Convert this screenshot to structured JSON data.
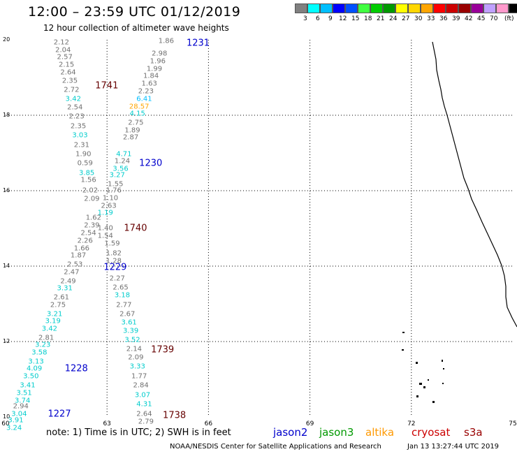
{
  "header": {
    "title": "12:00 – 23:59 UTC 01/12/2019",
    "subtitle": "12 hour collection of altimeter wave heights"
  },
  "legend": {
    "unit": "(ft)",
    "colors": [
      "#808080",
      "#00ffff",
      "#00bfff",
      "#0000ff",
      "#0050ff",
      "#40ff40",
      "#00cc00",
      "#009900",
      "#ffff00",
      "#ffd700",
      "#ffa500",
      "#ff0000",
      "#cc0000",
      "#990000",
      "#990099",
      "#c0a0ff",
      "#ff99cc",
      "#000000"
    ],
    "labels": [
      "3",
      "6",
      "9",
      "12",
      "15",
      "18",
      "21",
      "24",
      "27",
      "30",
      "33",
      "36",
      "39",
      "42",
      "45",
      "70"
    ]
  },
  "axes": {
    "y_ticks": [
      "20",
      "18",
      "16",
      "14",
      "12",
      "10"
    ],
    "x_ticks": [
      "60",
      "63",
      "66",
      "69",
      "72",
      "75"
    ]
  },
  "tracks": [
    {
      "label": "1231",
      "color": "#0000cc",
      "lon": 65.35,
      "lat": 19.9
    },
    {
      "label": "1741",
      "color": "#660000",
      "lon": 62.65,
      "lat": 18.77
    },
    {
      "label": "1230",
      "color": "#0000cc",
      "lon": 63.95,
      "lat": 16.73
    },
    {
      "label": "1740",
      "color": "#660000",
      "lon": 63.5,
      "lat": 15.0
    },
    {
      "label": "1229",
      "color": "#0000cc",
      "lon": 62.9,
      "lat": 13.97
    },
    {
      "label": "1739",
      "color": "#660000",
      "lon": 64.3,
      "lat": 11.77
    },
    {
      "label": "1228",
      "color": "#0000cc",
      "lon": 61.75,
      "lat": 11.28
    },
    {
      "label": "1227",
      "color": "#0000cc",
      "lon": 61.25,
      "lat": 10.07
    },
    {
      "label": "1738",
      "color": "#660000",
      "lon": 64.65,
      "lat": 10.04
    }
  ],
  "observations": [
    {
      "v": "2.12",
      "c": "#707070",
      "lon": 61.65,
      "lat": 19.93
    },
    {
      "v": "2.04",
      "c": "#707070",
      "lon": 61.7,
      "lat": 19.73
    },
    {
      "v": "2.57",
      "c": "#707070",
      "lon": 61.75,
      "lat": 19.53
    },
    {
      "v": "2.15",
      "c": "#707070",
      "lon": 61.8,
      "lat": 19.33
    },
    {
      "v": "2.64",
      "c": "#707070",
      "lon": 61.85,
      "lat": 19.13
    },
    {
      "v": "2.35",
      "c": "#707070",
      "lon": 61.9,
      "lat": 18.9
    },
    {
      "v": "2.72",
      "c": "#707070",
      "lon": 61.95,
      "lat": 18.67
    },
    {
      "v": "3.42",
      "c": "#00cccc",
      "lon": 62.0,
      "lat": 18.43
    },
    {
      "v": "2.54",
      "c": "#707070",
      "lon": 62.05,
      "lat": 18.2
    },
    {
      "v": "2.23",
      "c": "#707070",
      "lon": 62.1,
      "lat": 17.97
    },
    {
      "v": "2.35",
      "c": "#707070",
      "lon": 62.15,
      "lat": 17.7
    },
    {
      "v": "3.03",
      "c": "#00cccc",
      "lon": 62.2,
      "lat": 17.47
    },
    {
      "v": "2.31",
      "c": "#707070",
      "lon": 62.25,
      "lat": 17.2
    },
    {
      "v": "1.90",
      "c": "#707070",
      "lon": 62.3,
      "lat": 16.97
    },
    {
      "v": "0.59",
      "c": "#707070",
      "lon": 62.35,
      "lat": 16.73
    },
    {
      "v": "3.85",
      "c": "#00cccc",
      "lon": 62.4,
      "lat": 16.47
    },
    {
      "v": "1.56",
      "c": "#707070",
      "lon": 62.45,
      "lat": 16.27
    },
    {
      "v": "2.02",
      "c": "#707070",
      "lon": 62.5,
      "lat": 16.0
    },
    {
      "v": "2.09",
      "c": "#707070",
      "lon": 62.55,
      "lat": 15.77
    },
    {
      "v": "1.62",
      "c": "#707070",
      "lon": 62.6,
      "lat": 15.27
    },
    {
      "v": "2.39",
      "c": "#707070",
      "lon": 62.55,
      "lat": 15.07
    },
    {
      "v": "2.54",
      "c": "#707070",
      "lon": 62.45,
      "lat": 14.87
    },
    {
      "v": "2.26",
      "c": "#707070",
      "lon": 62.35,
      "lat": 14.67
    },
    {
      "v": "1.66",
      "c": "#707070",
      "lon": 62.25,
      "lat": 14.47
    },
    {
      "v": "1.87",
      "c": "#707070",
      "lon": 62.15,
      "lat": 14.27
    },
    {
      "v": "2.53",
      "c": "#707070",
      "lon": 62.05,
      "lat": 14.03
    },
    {
      "v": "2.47",
      "c": "#707070",
      "lon": 61.95,
      "lat": 13.83
    },
    {
      "v": "2.49",
      "c": "#707070",
      "lon": 61.85,
      "lat": 13.6
    },
    {
      "v": "3.31",
      "c": "#00cccc",
      "lon": 61.75,
      "lat": 13.4
    },
    {
      "v": "2.61",
      "c": "#707070",
      "lon": 61.65,
      "lat": 13.17
    },
    {
      "v": "2.75",
      "c": "#707070",
      "lon": 61.55,
      "lat": 12.97
    },
    {
      "v": "3.21",
      "c": "#00cccc",
      "lon": 61.45,
      "lat": 12.73
    },
    {
      "v": "3.19",
      "c": "#00cccc",
      "lon": 61.4,
      "lat": 12.53
    },
    {
      "v": "3.42",
      "c": "#00cccc",
      "lon": 61.3,
      "lat": 12.33
    },
    {
      "v": "2.81",
      "c": "#707070",
      "lon": 61.2,
      "lat": 12.1
    },
    {
      "v": "3.23",
      "c": "#00cccc",
      "lon": 61.1,
      "lat": 11.9
    },
    {
      "v": "3.58",
      "c": "#00cccc",
      "lon": 61.0,
      "lat": 11.7
    },
    {
      "v": "3.13",
      "c": "#00cccc",
      "lon": 60.9,
      "lat": 11.47
    },
    {
      "v": "4.09",
      "c": "#00cccc",
      "lon": 60.85,
      "lat": 11.27
    },
    {
      "v": "3.50",
      "c": "#00cccc",
      "lon": 60.75,
      "lat": 11.07
    },
    {
      "v": "3.41",
      "c": "#00cccc",
      "lon": 60.65,
      "lat": 10.83
    },
    {
      "v": "3.51",
      "c": "#00cccc",
      "lon": 60.55,
      "lat": 10.63
    },
    {
      "v": "3.74",
      "c": "#00cccc",
      "lon": 60.5,
      "lat": 10.43
    },
    {
      "v": "2.94",
      "c": "#707070",
      "lon": 60.45,
      "lat": 10.27
    },
    {
      "v": "3.04",
      "c": "#00cccc",
      "lon": 60.4,
      "lat": 10.07
    },
    {
      "v": "3.91",
      "c": "#00cccc",
      "lon": 60.3,
      "lat": 9.9
    },
    {
      "v": "3.24",
      "c": "#00cccc",
      "lon": 60.25,
      "lat": 9.7
    },
    {
      "v": "1.86",
      "c": "#707070",
      "lon": 64.75,
      "lat": 19.97
    },
    {
      "v": "2.98",
      "c": "#707070",
      "lon": 64.55,
      "lat": 19.63
    },
    {
      "v": "1.96",
      "c": "#707070",
      "lon": 64.5,
      "lat": 19.43
    },
    {
      "v": "1.99",
      "c": "#707070",
      "lon": 64.4,
      "lat": 19.23
    },
    {
      "v": "1.84",
      "c": "#707070",
      "lon": 64.3,
      "lat": 19.03
    },
    {
      "v": "1.63",
      "c": "#707070",
      "lon": 64.25,
      "lat": 18.83
    },
    {
      "v": "2.23",
      "c": "#707070",
      "lon": 64.15,
      "lat": 18.63
    },
    {
      "v": "6.41",
      "c": "#00bfff",
      "lon": 64.1,
      "lat": 18.43
    },
    {
      "v": "28.57",
      "c": "#ffa500",
      "lon": 63.95,
      "lat": 18.23
    },
    {
      "v": "4.15",
      "c": "#00cccc",
      "lon": 63.9,
      "lat": 18.03
    },
    {
      "v": "2.75",
      "c": "#707070",
      "lon": 63.85,
      "lat": 17.8
    },
    {
      "v": "1.89",
      "c": "#707070",
      "lon": 63.75,
      "lat": 17.6
    },
    {
      "v": "2.87",
      "c": "#707070",
      "lon": 63.7,
      "lat": 17.4
    },
    {
      "v": "4.71",
      "c": "#00cccc",
      "lon": 63.5,
      "lat": 16.97
    },
    {
      "v": "1.24",
      "c": "#707070",
      "lon": 63.45,
      "lat": 16.77
    },
    {
      "v": "3.56",
      "c": "#00cccc",
      "lon": 63.4,
      "lat": 16.57
    },
    {
      "v": "3.27",
      "c": "#00cccc",
      "lon": 63.3,
      "lat": 16.4
    },
    {
      "v": "1.55",
      "c": "#707070",
      "lon": 63.25,
      "lat": 16.17
    },
    {
      "v": "1.76",
      "c": "#707070",
      "lon": 63.2,
      "lat": 16.0
    },
    {
      "v": "1.10",
      "c": "#707070",
      "lon": 63.1,
      "lat": 15.8
    },
    {
      "v": "2.63",
      "c": "#707070",
      "lon": 63.05,
      "lat": 15.6
    },
    {
      "v": "1.19",
      "c": "#00cccc",
      "lon": 62.95,
      "lat": 15.4
    },
    {
      "v": "1.40",
      "c": "#707070",
      "lon": 62.95,
      "lat": 15.0
    },
    {
      "v": "1.54",
      "c": "#707070",
      "lon": 62.95,
      "lat": 14.8
    },
    {
      "v": "1.59",
      "c": "#707070",
      "lon": 63.15,
      "lat": 14.6
    },
    {
      "v": "1.82",
      "c": "#707070",
      "lon": 63.2,
      "lat": 14.33
    },
    {
      "v": "1.28",
      "c": "#707070",
      "lon": 63.2,
      "lat": 14.13
    },
    {
      "v": "2.27",
      "c": "#707070",
      "lon": 63.3,
      "lat": 13.67
    },
    {
      "v": "2.65",
      "c": "#707070",
      "lon": 63.4,
      "lat": 13.43
    },
    {
      "v": "3.18",
      "c": "#00cccc",
      "lon": 63.45,
      "lat": 13.23
    },
    {
      "v": "2.77",
      "c": "#707070",
      "lon": 63.5,
      "lat": 12.97
    },
    {
      "v": "2.67",
      "c": "#707070",
      "lon": 63.6,
      "lat": 12.73
    },
    {
      "v": "3.61",
      "c": "#00cccc",
      "lon": 63.65,
      "lat": 12.5
    },
    {
      "v": "3.39",
      "c": "#00cccc",
      "lon": 63.7,
      "lat": 12.27
    },
    {
      "v": "3.52",
      "c": "#00cccc",
      "lon": 63.75,
      "lat": 12.03
    },
    {
      "v": "2.14",
      "c": "#707070",
      "lon": 63.8,
      "lat": 11.8
    },
    {
      "v": "2.09",
      "c": "#707070",
      "lon": 63.85,
      "lat": 11.57
    },
    {
      "v": "3.33",
      "c": "#00cccc",
      "lon": 63.9,
      "lat": 11.33
    },
    {
      "v": "1.77",
      "c": "#707070",
      "lon": 63.95,
      "lat": 11.07
    },
    {
      "v": "2.84",
      "c": "#707070",
      "lon": 64.0,
      "lat": 10.83
    },
    {
      "v": "3.07",
      "c": "#00cccc",
      "lon": 64.05,
      "lat": 10.57
    },
    {
      "v": "4.31",
      "c": "#00cccc",
      "lon": 64.1,
      "lat": 10.33
    },
    {
      "v": "2.64",
      "c": "#707070",
      "lon": 64.1,
      "lat": 10.07
    },
    {
      "v": "2.79",
      "c": "#707070",
      "lon": 64.15,
      "lat": 9.87
    }
  ],
  "footer": {
    "note": "note:  1) Time is in UTC;  2) SWH is in feet",
    "satellites": [
      {
        "name": "jason2",
        "color": "#0000cc"
      },
      {
        "name": "jason3",
        "color": "#009900"
      },
      {
        "name": "altika",
        "color": "#ff9900"
      },
      {
        "name": "cryosat",
        "color": "#cc0000"
      },
      {
        "name": "s3a",
        "color": "#990000"
      }
    ],
    "credit": "NOAA/NESDIS Center for Satellite Applications and Research",
    "timestamp": "Jan 13 13:27:44 UTC 2019"
  }
}
